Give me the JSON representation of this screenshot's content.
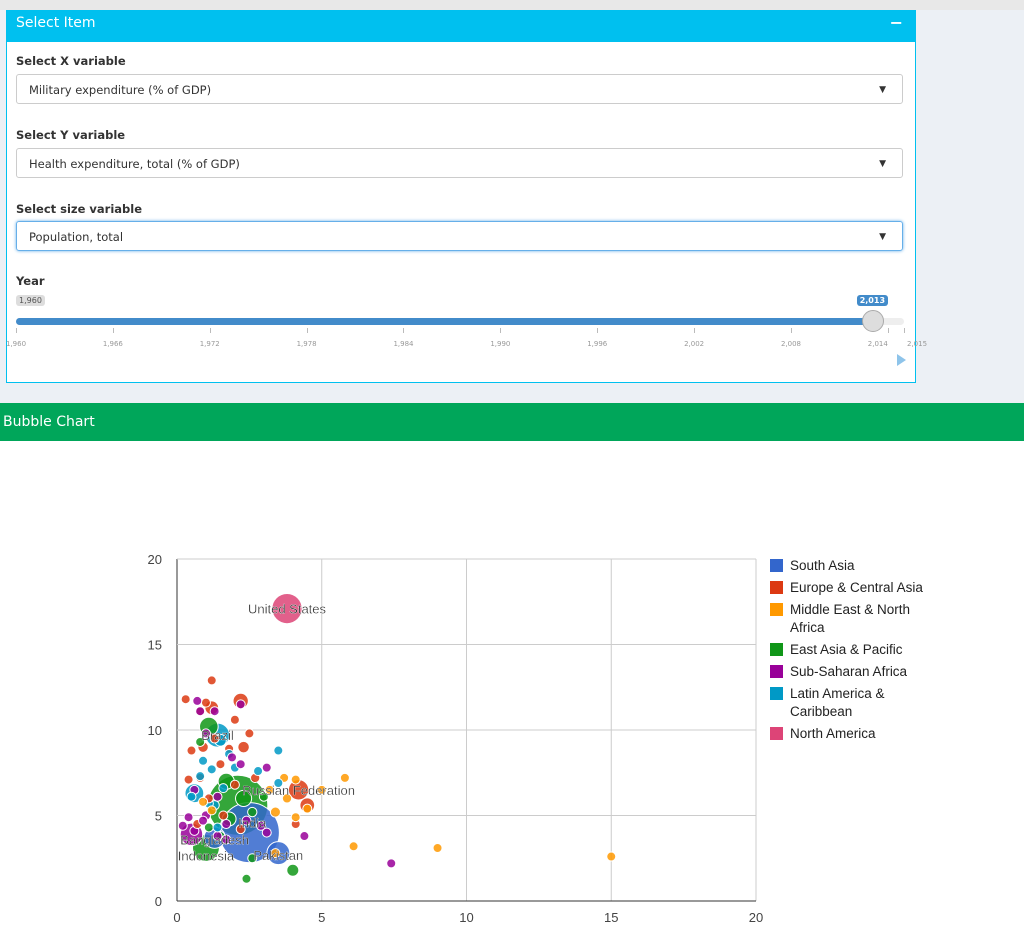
{
  "panel": {
    "title": "Select Item",
    "collapse_label": "−",
    "x_label": "Select X variable",
    "x_value": "Military expenditure (% of GDP)",
    "y_label": "Select Y variable",
    "y_value": "Health expenditure, total (% of GDP)",
    "size_label": "Select size variable",
    "size_value": "Population, total",
    "year_label": "Year",
    "year_min_label": "1,960",
    "year_value_label": "2,013",
    "year_min": 1960,
    "year_max": 2015,
    "year_value": 2013,
    "ticks": [
      "1,960",
      "1,966",
      "1,972",
      "1,978",
      "1,984",
      "1,990",
      "1,996",
      "2,002",
      "2,008",
      "2,014",
      "2,015"
    ]
  },
  "bubble_title": "Bubble Chart",
  "chart_data": {
    "type": "scatter",
    "xlim": [
      0,
      20
    ],
    "ylim": [
      0,
      20
    ],
    "xticks": [
      "0",
      "5",
      "10",
      "15",
      "20"
    ],
    "yticks": [
      "0",
      "5",
      "10",
      "15",
      "20"
    ],
    "grid": true,
    "legend_position": "right",
    "regions": [
      {
        "name": "South Asia",
        "color": "#3366cc"
      },
      {
        "name": "Europe & Central Asia",
        "color": "#dc3912"
      },
      {
        "name": "Middle East & North Africa",
        "color": "#ff9900"
      },
      {
        "name": "East Asia & Pacific",
        "color": "#109618"
      },
      {
        "name": "Sub-Saharan Africa",
        "color": "#990099"
      },
      {
        "name": "Latin America & Caribbean",
        "color": "#0099c6"
      },
      {
        "name": "North America",
        "color": "#dd4477"
      }
    ],
    "labels": [
      {
        "text": "United States",
        "x": 3.8,
        "y": 17.1
      },
      {
        "text": "Russian Federation",
        "x": 4.2,
        "y": 6.5
      },
      {
        "text": "Bangladesh",
        "x": 1.3,
        "y": 3.6
      },
      {
        "text": "Indonesia",
        "x": 1.0,
        "y": 3.0
      },
      {
        "text": "Pakistan",
        "x": 3.5,
        "y": 2.7
      },
      {
        "text": "India",
        "x": 2.6,
        "y": 4.0
      },
      {
        "text": "Brazil",
        "x": 1.4,
        "y": 9.7
      }
    ],
    "points": [
      [
        2.5,
        4.0,
        0,
        1252
      ],
      [
        3.5,
        2.8,
        0,
        182
      ],
      [
        1.3,
        3.7,
        0,
        157
      ],
      [
        1.0,
        3.1,
        3,
        250
      ],
      [
        2.1,
        5.6,
        3,
        1357
      ],
      [
        1.4,
        9.7,
        5,
        200
      ],
      [
        0.5,
        3.9,
        4,
        174
      ],
      [
        3.8,
        17.1,
        6,
        316
      ],
      [
        4.2,
        6.5,
        1,
        143
      ],
      [
        1.1,
        10.2,
        3,
        120
      ],
      [
        1.7,
        7.0,
        3,
        90
      ],
      [
        4.0,
        1.8,
        3,
        50
      ],
      [
        2.4,
        1.3,
        3,
        10
      ],
      [
        2.6,
        2.5,
        3,
        8
      ],
      [
        1.2,
        11.3,
        1,
        65
      ],
      [
        2.2,
        11.7,
        1,
        81
      ],
      [
        1.2,
        12.9,
        1,
        10
      ],
      [
        0.3,
        11.8,
        1,
        5
      ],
      [
        1.0,
        11.6,
        1,
        11
      ],
      [
        0.8,
        11.1,
        1,
        8
      ],
      [
        2.0,
        10.6,
        1,
        8
      ],
      [
        2.5,
        9.8,
        1,
        20
      ],
      [
        1.3,
        9.5,
        1,
        9
      ],
      [
        0.9,
        9.0,
        1,
        38
      ],
      [
        1.8,
        8.9,
        1,
        16
      ],
      [
        0.5,
        8.8,
        1,
        5
      ],
      [
        2.3,
        9.0,
        1,
        46
      ],
      [
        1.5,
        8.0,
        1,
        10
      ],
      [
        0.8,
        7.2,
        1,
        6
      ],
      [
        2.0,
        6.8,
        1,
        10
      ],
      [
        2.7,
        7.2,
        1,
        30
      ],
      [
        1.1,
        6.0,
        1,
        5
      ],
      [
        0.7,
        4.5,
        1,
        4
      ],
      [
        4.1,
        4.5,
        1,
        4
      ],
      [
        4.5,
        5.6,
        1,
        75
      ],
      [
        1.6,
        5.0,
        1,
        7
      ],
      [
        2.2,
        4.2,
        1,
        3
      ],
      [
        0.4,
        7.1,
        1,
        3
      ],
      [
        3.2,
        6.5,
        2,
        8
      ],
      [
        3.7,
        7.2,
        2,
        4
      ],
      [
        4.1,
        7.1,
        2,
        3
      ],
      [
        5.0,
        6.5,
        2,
        9
      ],
      [
        5.8,
        7.2,
        2,
        4
      ],
      [
        3.8,
        6.0,
        2,
        30
      ],
      [
        3.4,
        5.2,
        2,
        35
      ],
      [
        4.5,
        5.4,
        2,
        10
      ],
      [
        4.1,
        4.9,
        2,
        3
      ],
      [
        6.1,
        3.2,
        2,
        7
      ],
      [
        9.0,
        3.1,
        2,
        25
      ],
      [
        15.0,
        2.6,
        2,
        3
      ],
      [
        1.2,
        5.3,
        2,
        15
      ],
      [
        3.4,
        2.8,
        2,
        4
      ],
      [
        0.9,
        5.8,
        2,
        5
      ],
      [
        1.3,
        11.1,
        4,
        3
      ],
      [
        0.7,
        11.7,
        4,
        2
      ],
      [
        2.2,
        11.5,
        4,
        3
      ],
      [
        1.0,
        9.8,
        4,
        4
      ],
      [
        1.9,
        8.4,
        4,
        6
      ],
      [
        2.2,
        8.0,
        4,
        4
      ],
      [
        3.1,
        7.8,
        4,
        2
      ],
      [
        0.6,
        6.5,
        4,
        5
      ],
      [
        1.0,
        5.0,
        4,
        30
      ],
      [
        1.7,
        4.5,
        4,
        12
      ],
      [
        0.4,
        4.9,
        4,
        20
      ],
      [
        0.2,
        4.4,
        4,
        5
      ],
      [
        1.4,
        3.8,
        4,
        10
      ],
      [
        1.7,
        3.6,
        4,
        8
      ],
      [
        2.9,
        4.4,
        4,
        8
      ],
      [
        3.1,
        4.0,
        4,
        5
      ],
      [
        4.4,
        3.8,
        4,
        6
      ],
      [
        7.4,
        2.2,
        4,
        6
      ],
      [
        0.6,
        4.1,
        4,
        6
      ],
      [
        0.9,
        4.7,
        4,
        4
      ],
      [
        2.4,
        4.7,
        4,
        4
      ],
      [
        1.4,
        6.1,
        4,
        5
      ],
      [
        0.8,
        11.1,
        4,
        2
      ],
      [
        1.5,
        9.4,
        5,
        48
      ],
      [
        1.8,
        8.6,
        5,
        10
      ],
      [
        2.0,
        7.8,
        5,
        7
      ],
      [
        2.8,
        7.6,
        5,
        6
      ],
      [
        3.5,
        8.8,
        5,
        3
      ],
      [
        1.2,
        7.7,
        5,
        7
      ],
      [
        0.8,
        7.3,
        5,
        5
      ],
      [
        0.6,
        6.3,
        5,
        122
      ],
      [
        1.1,
        5.7,
        5,
        16
      ],
      [
        0.5,
        6.1,
        5,
        4
      ],
      [
        1.6,
        6.6,
        5,
        10
      ],
      [
        3.5,
        6.9,
        5,
        4
      ],
      [
        1.3,
        5.6,
        5,
        30
      ],
      [
        0.9,
        8.2,
        5,
        10
      ],
      [
        1.4,
        4.3,
        5,
        2
      ],
      [
        1.8,
        4.8,
        3,
        67
      ],
      [
        2.3,
        6.0,
        3,
        90
      ],
      [
        2.6,
        5.2,
        3,
        30
      ],
      [
        1.1,
        4.3,
        3,
        25
      ],
      [
        1.5,
        3.8,
        3,
        20
      ],
      [
        0.8,
        9.3,
        3,
        5
      ],
      [
        3.0,
        6.1,
        3,
        28
      ]
    ]
  }
}
